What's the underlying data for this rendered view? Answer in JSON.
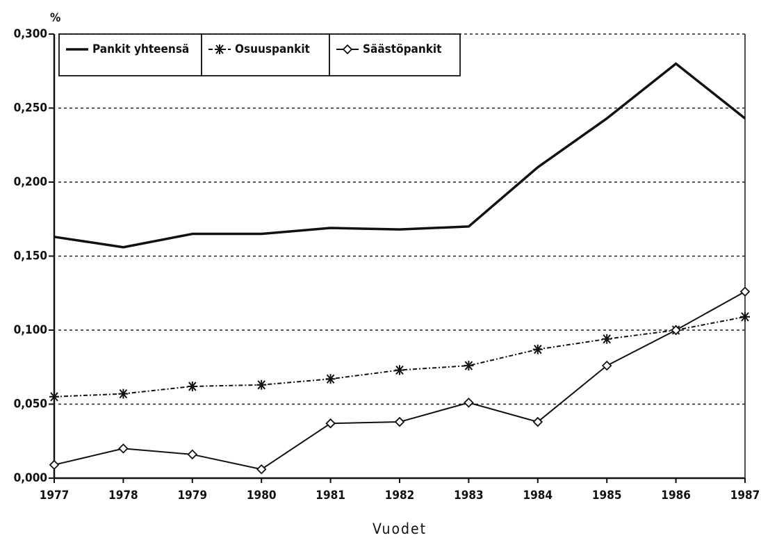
{
  "chart_data": {
    "type": "line",
    "y_unit": "%",
    "x_label": "Vuodet",
    "x": [
      1977,
      1978,
      1979,
      1980,
      1981,
      1982,
      1983,
      1984,
      1985,
      1986,
      1987
    ],
    "xlim": [
      1977,
      1987
    ],
    "xticks": [
      1977,
      1978,
      1979,
      1980,
      1981,
      1982,
      1983,
      1984,
      1985,
      1986,
      1987
    ],
    "ylim": [
      0,
      0.3
    ],
    "yticks": [
      {
        "value": 0,
        "label": "0,000"
      },
      {
        "value": 0.05,
        "label": "0,050"
      },
      {
        "value": 0.1,
        "label": "0,100"
      },
      {
        "value": 0.15,
        "label": "0,150"
      },
      {
        "value": 0.2,
        "label": "0,200"
      },
      {
        "value": 0.25,
        "label": "0,250"
      },
      {
        "value": 0.3,
        "label": "0,300"
      }
    ],
    "grid": true,
    "legend": "top-left",
    "series": [
      {
        "name": "Pankit yhteensä",
        "color": "#111111",
        "marker": "none",
        "line_style": "solid-thick",
        "values": [
          0.163,
          0.156,
          0.165,
          0.165,
          0.169,
          0.168,
          0.17,
          0.21,
          0.243,
          0.28,
          0.243
        ]
      },
      {
        "name": "Osuuspankit",
        "color": "#111111",
        "marker": "asterisk",
        "line_style": "dash-dot",
        "values": [
          0.055,
          0.057,
          0.062,
          0.063,
          0.067,
          0.073,
          0.076,
          0.087,
          0.094,
          0.1,
          0.109
        ]
      },
      {
        "name": "Säästöpankit",
        "color": "#111111",
        "marker": "diamond",
        "line_style": "solid",
        "values": [
          0.009,
          0.02,
          0.016,
          0.006,
          0.037,
          0.038,
          0.051,
          0.038,
          0.076,
          0.1,
          0.126
        ]
      }
    ]
  }
}
